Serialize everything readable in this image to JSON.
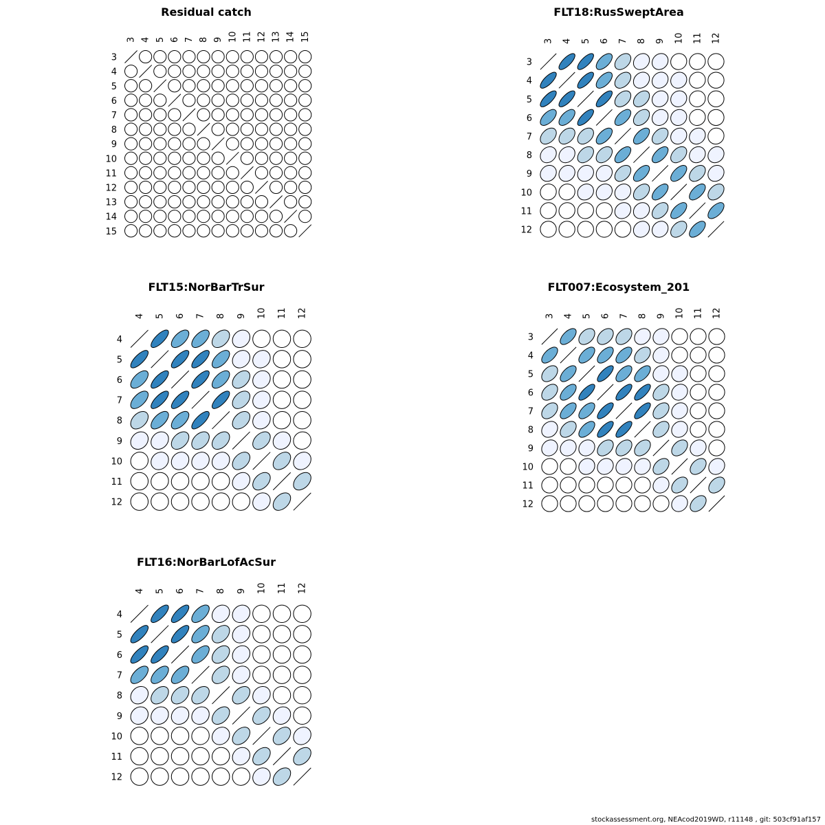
{
  "footer": "stockassessment.org, NEAcod2019WD, r11148 , git: 503cf91af157",
  "colors": {
    "c0": "#ffffff",
    "c1": "#eff3ff",
    "c2": "#bdd7e7",
    "c3": "#6baed6",
    "c4": "#3182bd"
  },
  "chart_data": [
    {
      "type": "heatmap",
      "title": "Residual catch",
      "labels": [
        "3",
        "4",
        "5",
        "6",
        "7",
        "8",
        "9",
        "10",
        "11",
        "12",
        "13",
        "14",
        "15"
      ],
      "matrix": [
        [
          1,
          0,
          0,
          0,
          0,
          0,
          0,
          0,
          0,
          0,
          0,
          0,
          0
        ],
        [
          0,
          1,
          0,
          0,
          0,
          0,
          0,
          0,
          0,
          0,
          0,
          0,
          0
        ],
        [
          0,
          0,
          1,
          0,
          0,
          0,
          0,
          0,
          0,
          0,
          0,
          0,
          0
        ],
        [
          0,
          0,
          0,
          1,
          0,
          0,
          0,
          0,
          0,
          0,
          0,
          0,
          0
        ],
        [
          0,
          0,
          0,
          0,
          1,
          0,
          0,
          0,
          0,
          0,
          0,
          0,
          0
        ],
        [
          0,
          0,
          0,
          0,
          0,
          1,
          0,
          0,
          0,
          0,
          0,
          0,
          0
        ],
        [
          0,
          0,
          0,
          0,
          0,
          0,
          1,
          0,
          0,
          0,
          0,
          0,
          0
        ],
        [
          0,
          0,
          0,
          0,
          0,
          0,
          0,
          1,
          0,
          0,
          0,
          0,
          0
        ],
        [
          0,
          0,
          0,
          0,
          0,
          0,
          0,
          0,
          1,
          0,
          0,
          0,
          0
        ],
        [
          0,
          0,
          0,
          0,
          0,
          0,
          0,
          0,
          0,
          1,
          0,
          0,
          0
        ],
        [
          0,
          0,
          0,
          0,
          0,
          0,
          0,
          0,
          0,
          0,
          1,
          0,
          0
        ],
        [
          0,
          0,
          0,
          0,
          0,
          0,
          0,
          0,
          0,
          0,
          0,
          1,
          0
        ],
        [
          0,
          0,
          0,
          0,
          0,
          0,
          0,
          0,
          0,
          0,
          0,
          0,
          1
        ]
      ]
    },
    {
      "type": "heatmap",
      "title": "FLT18:RusSweptArea",
      "labels": [
        "3",
        "4",
        "5",
        "6",
        "7",
        "8",
        "9",
        "10",
        "11",
        "12"
      ],
      "matrix": [
        [
          1,
          0.75,
          0.75,
          0.6,
          0.4,
          0.2,
          0.15,
          0.05,
          0.05,
          0
        ],
        [
          0.75,
          1,
          0.75,
          0.6,
          0.4,
          0.2,
          0.15,
          0.1,
          0.05,
          0
        ],
        [
          0.75,
          0.75,
          1,
          0.75,
          0.4,
          0.4,
          0.15,
          0.1,
          0.05,
          0
        ],
        [
          0.6,
          0.6,
          0.75,
          1,
          0.6,
          0.4,
          0.15,
          0.1,
          0.05,
          0
        ],
        [
          0.4,
          0.4,
          0.4,
          0.6,
          1,
          0.6,
          0.4,
          0.15,
          0.15,
          0.05
        ],
        [
          0.2,
          0.2,
          0.4,
          0.4,
          0.6,
          1,
          0.6,
          0.4,
          0.15,
          0.15
        ],
        [
          0.15,
          0.15,
          0.15,
          0.15,
          0.4,
          0.6,
          1,
          0.6,
          0.4,
          0.15
        ],
        [
          0.05,
          0.05,
          0.15,
          0.15,
          0.15,
          0.4,
          0.6,
          1,
          0.6,
          0.4
        ],
        [
          0.05,
          0.05,
          0.05,
          0.05,
          0.15,
          0.15,
          0.4,
          0.6,
          1,
          0.6
        ],
        [
          0,
          0,
          0,
          0,
          0.05,
          0.15,
          0.15,
          0.4,
          0.6,
          1
        ]
      ]
    },
    {
      "type": "heatmap",
      "title": "FLT15:NorBarTrSur",
      "labels": [
        "4",
        "5",
        "6",
        "7",
        "8",
        "9",
        "10",
        "11",
        "12"
      ],
      "matrix": [
        [
          1,
          0.75,
          0.6,
          0.6,
          0.4,
          0.2,
          0.05,
          0,
          0
        ],
        [
          0.75,
          1,
          0.75,
          0.75,
          0.6,
          0.2,
          0.15,
          0,
          0
        ],
        [
          0.6,
          0.75,
          1,
          0.75,
          0.6,
          0.4,
          0.15,
          0,
          0
        ],
        [
          0.6,
          0.75,
          0.75,
          1,
          0.75,
          0.4,
          0.15,
          0,
          0
        ],
        [
          0.4,
          0.6,
          0.6,
          0.75,
          1,
          0.4,
          0.15,
          0.05,
          0
        ],
        [
          0.2,
          0.2,
          0.4,
          0.4,
          0.4,
          1,
          0.4,
          0.15,
          0.05
        ],
        [
          0.05,
          0.15,
          0.15,
          0.15,
          0.15,
          0.4,
          1,
          0.4,
          0.2
        ],
        [
          0,
          0.05,
          0.05,
          0.05,
          0.05,
          0.2,
          0.4,
          1,
          0.4
        ],
        [
          0,
          0,
          0,
          0,
          0.05,
          0.05,
          0.15,
          0.4,
          1
        ]
      ]
    },
    {
      "type": "heatmap",
      "title": "FLT007:Ecosystem_201",
      "labels": [
        "3",
        "4",
        "5",
        "6",
        "7",
        "8",
        "9",
        "10",
        "11",
        "12"
      ],
      "matrix": [
        [
          1,
          0.6,
          0.4,
          0.4,
          0.4,
          0.2,
          0.15,
          0.05,
          0.05,
          0
        ],
        [
          0.6,
          1,
          0.6,
          0.6,
          0.6,
          0.4,
          0.15,
          0.05,
          0.05,
          0
        ],
        [
          0.4,
          0.6,
          1,
          0.75,
          0.6,
          0.6,
          0.15,
          0.1,
          0.05,
          0
        ],
        [
          0.4,
          0.6,
          0.75,
          1,
          0.75,
          0.75,
          0.4,
          0.15,
          0.05,
          0
        ],
        [
          0.4,
          0.6,
          0.6,
          0.75,
          1,
          0.75,
          0.4,
          0.15,
          0.05,
          0
        ],
        [
          0.2,
          0.4,
          0.6,
          0.75,
          0.75,
          1,
          0.4,
          0.15,
          0.05,
          0
        ],
        [
          0.15,
          0.15,
          0.15,
          0.4,
          0.4,
          0.4,
          1,
          0.4,
          0.15,
          0.05
        ],
        [
          0.05,
          0.05,
          0.1,
          0.15,
          0.15,
          0.15,
          0.4,
          1,
          0.4,
          0.15
        ],
        [
          0.05,
          0.05,
          0.05,
          0.05,
          0.05,
          0.05,
          0.15,
          0.4,
          1,
          0.4
        ],
        [
          0,
          0,
          0,
          0,
          0,
          0,
          0.05,
          0.15,
          0.4,
          1
        ]
      ]
    },
    {
      "type": "heatmap",
      "title": "FLT16:NorBarLofAcSur",
      "labels": [
        "4",
        "5",
        "6",
        "7",
        "8",
        "9",
        "10",
        "11",
        "12"
      ],
      "matrix": [
        [
          1,
          0.75,
          0.75,
          0.6,
          0.2,
          0.15,
          0,
          0,
          0
        ],
        [
          0.75,
          1,
          0.75,
          0.6,
          0.4,
          0.15,
          0,
          0,
          0
        ],
        [
          0.75,
          0.75,
          1,
          0.6,
          0.4,
          0.15,
          0,
          0,
          0
        ],
        [
          0.6,
          0.6,
          0.6,
          1,
          0.4,
          0.15,
          0,
          0,
          0
        ],
        [
          0.2,
          0.4,
          0.4,
          0.4,
          1,
          0.4,
          0.15,
          0,
          0
        ],
        [
          0.15,
          0.15,
          0.15,
          0.15,
          0.4,
          1,
          0.4,
          0.15,
          0
        ],
        [
          0,
          0,
          0,
          0.05,
          0.15,
          0.4,
          1,
          0.4,
          0.15
        ],
        [
          0,
          0,
          0,
          0,
          0.05,
          0.15,
          0.4,
          1,
          0.4
        ],
        [
          0,
          0,
          0,
          0,
          0,
          0.05,
          0.15,
          0.4,
          1
        ]
      ]
    }
  ]
}
